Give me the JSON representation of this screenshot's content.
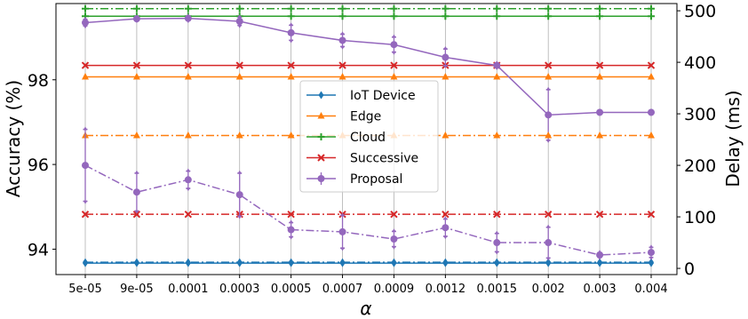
{
  "chart_data": {
    "type": "line",
    "title": "",
    "categories": [
      "5e-05",
      "9e-05",
      "0.0001",
      "0.0003",
      "0.0005",
      "0.0007",
      "0.0009",
      "0.0012",
      "0.0015",
      "0.002",
      "0.003",
      "0.004"
    ],
    "xlabel": "α",
    "ylabel_left": "Accuracy (%)",
    "ylabel_right": "Delay (ms)",
    "ylim_left": [
      93.4,
      99.8
    ],
    "ylim_right": [
      -12,
      514
    ],
    "yticks_left": [
      "94",
      "96",
      "98"
    ],
    "yticks_right": [
      "0",
      "100",
      "200",
      "300",
      "400",
      "500"
    ],
    "grid": "vertical",
    "legend_position": "center",
    "legend": [
      "IoT Device",
      "Edge",
      "Cloud",
      "Successive",
      "Proposal"
    ],
    "series": [
      {
        "name": "IoT Device",
        "color": "#1f77b4",
        "marker": "diamond",
        "axis": "left",
        "linestyle": "solid",
        "values": [
          93.67,
          93.67,
          93.67,
          93.67,
          93.67,
          93.67,
          93.67,
          93.67,
          93.67,
          93.67,
          93.67,
          93.67
        ]
      },
      {
        "name": "Edge",
        "color": "#ff7f0e",
        "marker": "triangle",
        "axis": "left",
        "linestyle": "solid",
        "values": [
          98.07,
          98.07,
          98.07,
          98.07,
          98.07,
          98.07,
          98.07,
          98.07,
          98.07,
          98.07,
          98.07,
          98.07
        ]
      },
      {
        "name": "Cloud",
        "color": "#2ca02c",
        "marker": "plus",
        "axis": "left",
        "linestyle": "solid",
        "values": [
          99.5,
          99.5,
          99.5,
          99.5,
          99.5,
          99.5,
          99.5,
          99.5,
          99.5,
          99.5,
          99.5,
          99.5
        ]
      },
      {
        "name": "Successive",
        "color": "#d62728",
        "marker": "x",
        "axis": "left",
        "linestyle": "solid",
        "values": [
          98.34,
          98.34,
          98.34,
          98.34,
          98.34,
          98.34,
          98.34,
          98.34,
          98.34,
          98.34,
          98.34,
          98.34
        ]
      },
      {
        "name": "Proposal",
        "color": "#9467bd",
        "marker": "circle",
        "axis": "left",
        "linestyle": "solid",
        "values": [
          99.35,
          99.44,
          99.45,
          99.38,
          99.11,
          98.93,
          98.83,
          98.53,
          98.34,
          97.17,
          97.23,
          97.23
        ],
        "error": [
          0.08,
          0.04,
          0.05,
          0.1,
          0.18,
          0.15,
          0.18,
          0.2,
          0.05,
          0.6,
          0.03,
          0.03
        ]
      },
      {
        "name": "IoT Device delay",
        "color": "#1f77b4",
        "marker": "diamond",
        "axis": "right",
        "linestyle": "dashdot",
        "values": [
          12,
          12,
          12,
          12,
          12,
          12,
          12,
          12,
          12,
          12,
          12,
          12
        ]
      },
      {
        "name": "Edge delay",
        "color": "#ff7f0e",
        "marker": "triangle",
        "axis": "right",
        "linestyle": "dashdot",
        "values": [
          258,
          258,
          258,
          258,
          258,
          258,
          258,
          258,
          258,
          258,
          258,
          258
        ]
      },
      {
        "name": "Cloud delay",
        "color": "#2ca02c",
        "marker": "plus",
        "axis": "right",
        "linestyle": "dashdot",
        "values": [
          504,
          504,
          504,
          504,
          504,
          504,
          504,
          504,
          504,
          504,
          504,
          504
        ]
      },
      {
        "name": "Successive delay",
        "color": "#d62728",
        "marker": "x",
        "axis": "right",
        "linestyle": "dashdot",
        "values": [
          105,
          105,
          105,
          105,
          105,
          105,
          105,
          105,
          105,
          105,
          105,
          105
        ]
      },
      {
        "name": "Proposal delay",
        "color": "#9467bd",
        "marker": "circle",
        "axis": "right",
        "linestyle": "dashdot",
        "values": [
          200,
          148,
          172,
          143,
          75,
          71,
          57,
          79,
          50,
          50,
          26,
          31
        ],
        "error": [
          70,
          37,
          17,
          42,
          14,
          32,
          15,
          17,
          18,
          30,
          5,
          10
        ]
      }
    ]
  }
}
